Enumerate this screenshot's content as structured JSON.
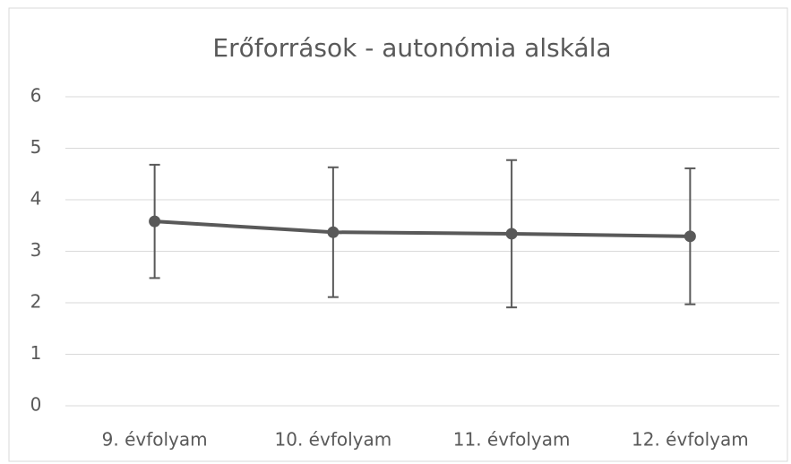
{
  "chart_data": {
    "type": "line",
    "title": "Erőforrások - autonómia alskála",
    "categories": [
      "9. évfolyam",
      "10. évfolyam",
      "11. évfolyam",
      "12. évfolyam"
    ],
    "series": [
      {
        "name": "autonómia alskála",
        "color": "#595959",
        "values": [
          3.58,
          3.37,
          3.34,
          3.29
        ],
        "errors": [
          1.1,
          1.26,
          1.43,
          1.32
        ]
      }
    ],
    "ylim": [
      0,
      6
    ],
    "yticks": [
      0,
      1,
      2,
      3,
      4,
      5,
      6
    ],
    "grid": true
  }
}
